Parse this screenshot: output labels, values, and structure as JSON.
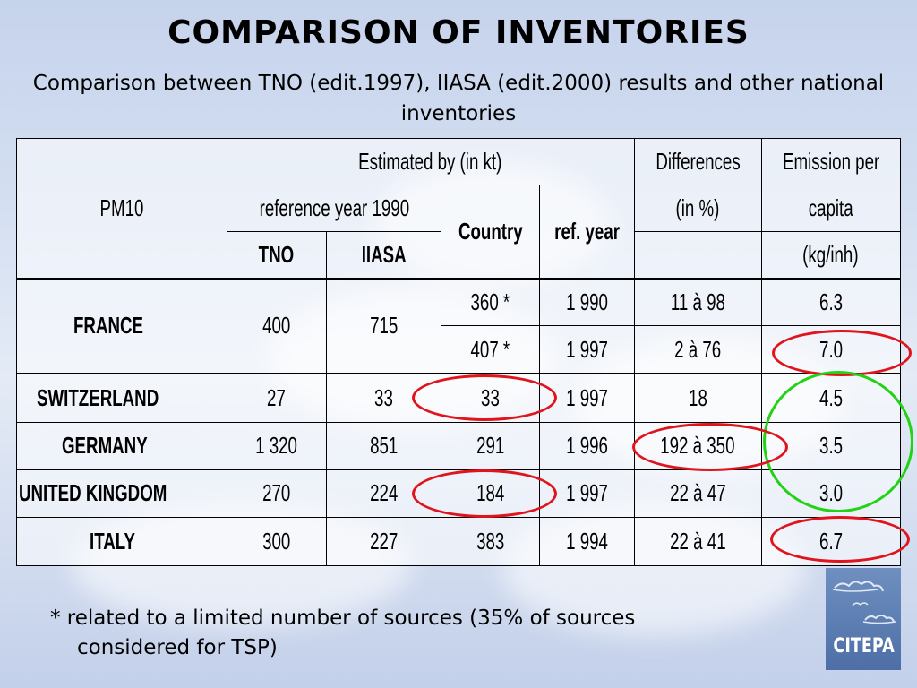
{
  "title": "COMPARISON OF INVENTORIES",
  "subtitle": "Comparison between TNO (edit.1997), IIASA (edit.2000) results and other national inventories",
  "table": {
    "header": {
      "pm10": "PM10",
      "estimated": "Estimated by (in kt)",
      "reference_year": "reference year 1990",
      "tno": "TNO",
      "iiasa": "IIASA",
      "country": "Country",
      "ref_year": "ref. year",
      "differences_1": "Differences",
      "differences_2": "(in %)",
      "emission_1": "Emission per",
      "emission_2": "capita",
      "emission_3": "(kg/inh)"
    },
    "rows": [
      {
        "name": "FRANCE",
        "tno": "400",
        "iiasa": "715",
        "country": "360 *",
        "ref_year": "1 990",
        "diff": "11 à 98",
        "emission": "6.3"
      },
      {
        "name": "",
        "tno": "",
        "iiasa": "",
        "country": "407 *",
        "ref_year": "1 997",
        "diff": "2 à 76",
        "emission": "7.0"
      },
      {
        "name": "SWITZERLAND",
        "tno": "27",
        "iiasa": "33",
        "country": "33",
        "ref_year": "1 997",
        "diff": "18",
        "emission": "4.5"
      },
      {
        "name": "GERMANY",
        "tno": "1 320",
        "iiasa": "851",
        "country": "291",
        "ref_year": "1 996",
        "diff": "192 à 350",
        "emission": "3.5"
      },
      {
        "name": "UNITED KINGDOM",
        "tno": "270",
        "iiasa": "224",
        "country": "184",
        "ref_year": "1 997",
        "diff": "22 à 47",
        "emission": "3.0"
      },
      {
        "name": "ITALY",
        "tno": "300",
        "iiasa": "227",
        "country": "383",
        "ref_year": "1 994",
        "diff": "22 à 41",
        "emission": "6.7"
      }
    ]
  },
  "footnote": {
    "line1": "* related to a limited number of sources (35% of sources",
    "line2": "considered for TSP)"
  },
  "logo": {
    "text": "CITEPA",
    "color": "#5a7cb3"
  },
  "colors": {
    "highlight_red": "#e0141c",
    "highlight_green": "#22d214"
  }
}
